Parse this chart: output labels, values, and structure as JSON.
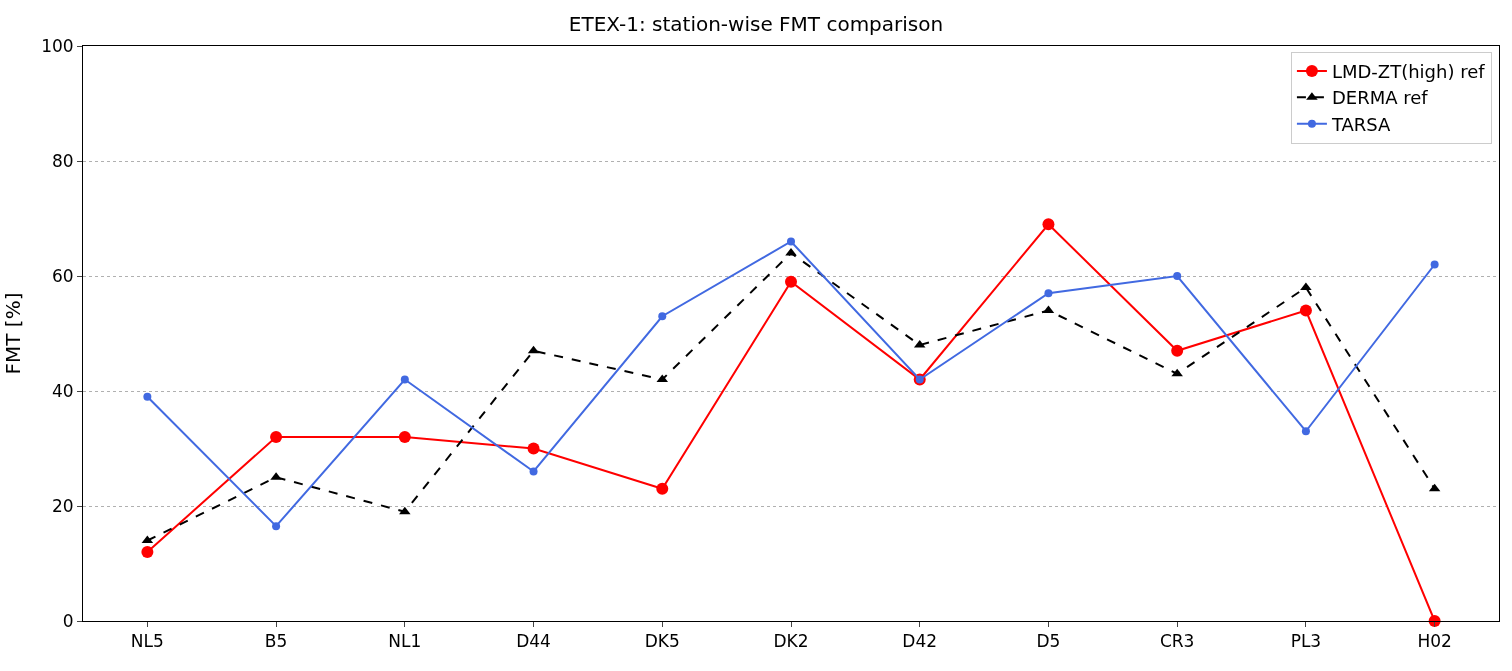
{
  "chart_data": {
    "type": "line",
    "title": "ETEX-1: station-wise FMT comparison",
    "ylabel": "FMT [%]",
    "categories": [
      "NL5",
      "B5",
      "NL1",
      "D44",
      "DK5",
      "DK2",
      "D42",
      "D5",
      "CR3",
      "PL3",
      "H02"
    ],
    "series": [
      {
        "name": "LMD-ZT(high) ref",
        "color": "#ff0000",
        "marker": "circle",
        "line_style": "solid",
        "values": [
          12,
          32,
          32,
          30,
          23,
          59,
          42,
          69,
          47,
          54,
          0
        ]
      },
      {
        "name": "DERMA ref",
        "color": "#000000",
        "marker": "triangle",
        "line_style": "dashed",
        "values": [
          14,
          25,
          19,
          47,
          42,
          64,
          48,
          54,
          43,
          58,
          23
        ]
      },
      {
        "name": "TARSA",
        "color": "#4169e1",
        "marker": "circle",
        "line_style": "solid",
        "values": [
          39,
          16.5,
          42,
          26,
          53,
          66,
          42,
          57,
          60,
          33,
          62
        ]
      }
    ],
    "ylim": [
      0,
      100
    ],
    "yticks": [
      0,
      20,
      40,
      60,
      80,
      100
    ],
    "grid": "y",
    "legend": "top right"
  }
}
